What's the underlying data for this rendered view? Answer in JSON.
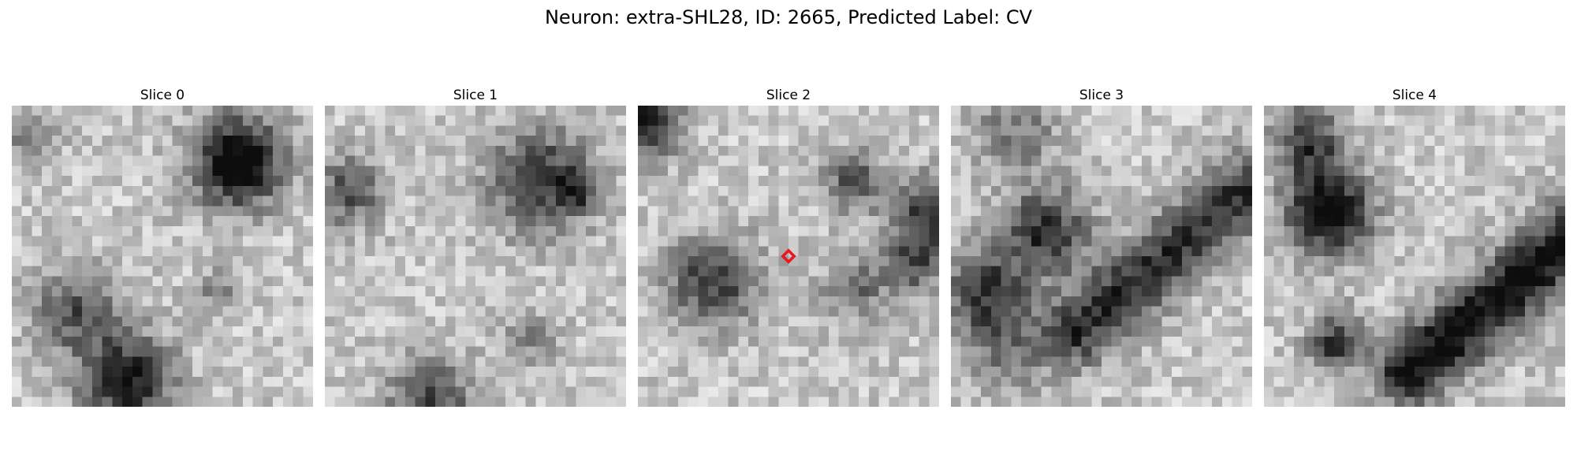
{
  "figure": {
    "title": "Neuron: extra-SHL28, ID: 2665, Predicted Label: CV"
  },
  "slices": [
    {
      "label": "Slice 0",
      "has_marker": false
    },
    {
      "label": "Slice 1",
      "has_marker": false
    },
    {
      "label": "Slice 2",
      "has_marker": true
    },
    {
      "label": "Slice 3",
      "has_marker": false
    },
    {
      "label": "Slice 4",
      "has_marker": false
    }
  ],
  "colors": {
    "marker": "#e8191e",
    "colormap": "gray_r"
  }
}
